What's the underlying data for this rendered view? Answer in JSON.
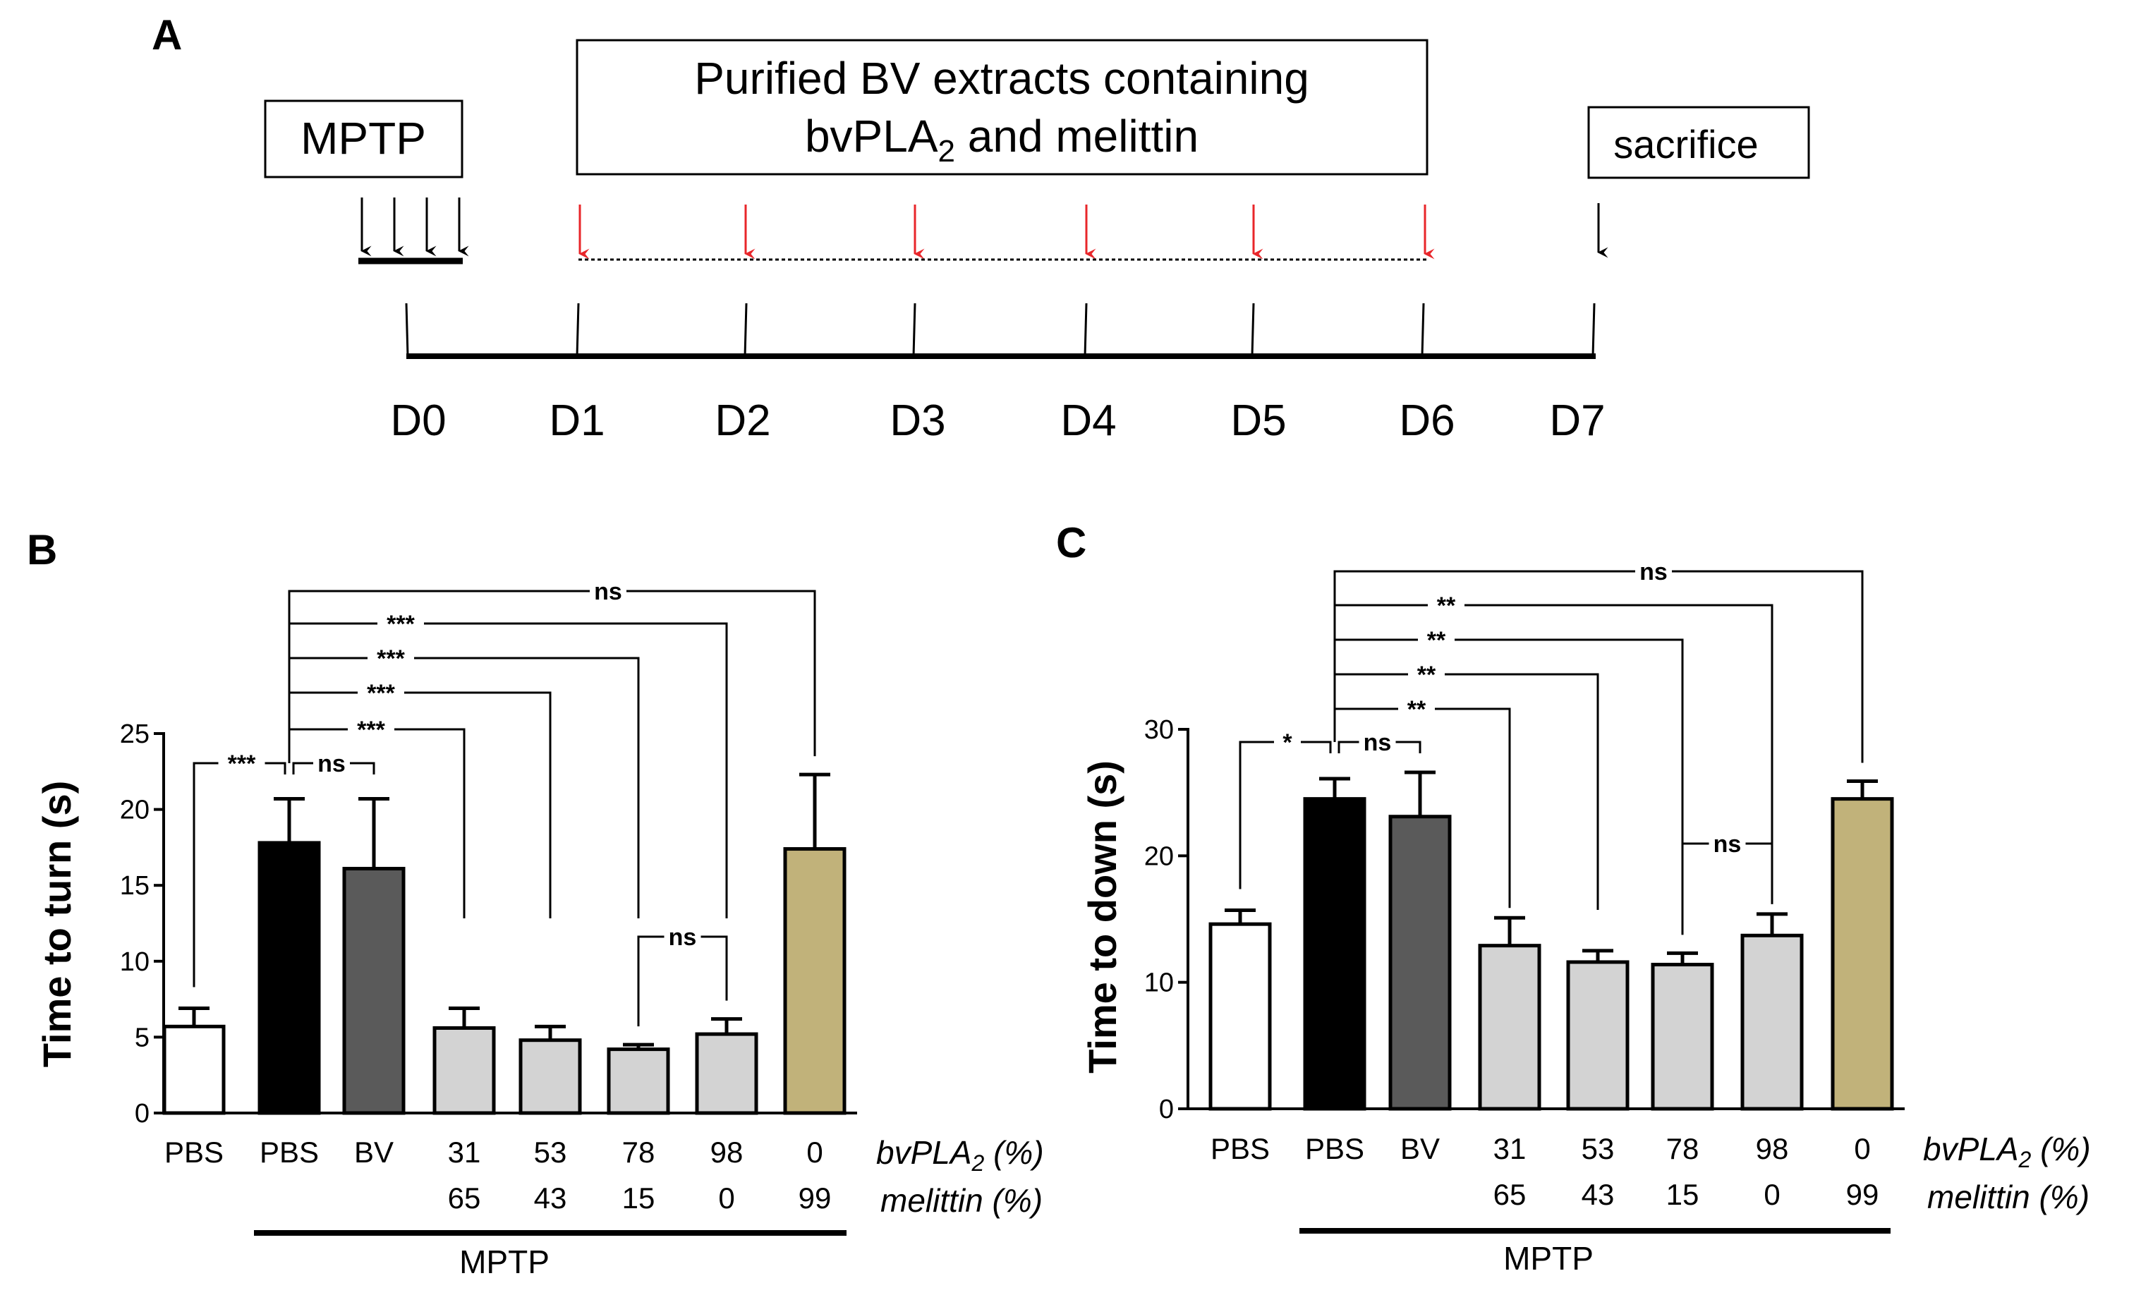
{
  "panels": {
    "a": "A",
    "b": "B",
    "c": "C"
  },
  "timeline": {
    "mptp_label": "MPTP",
    "treatment_line1": "Purified BV extracts containing",
    "treatment_line2_prefix": "bvPLA",
    "treatment_line2_sub": "2",
    "treatment_line2_suffix": " and melittin",
    "sacrifice_label": "sacrifice",
    "days": [
      "D0",
      "D1",
      "D2",
      "D3",
      "D4",
      "D5",
      "D6",
      "D7"
    ],
    "arrow_color_treatment": "#e8262a",
    "arrow_color_default": "#000000"
  },
  "row_labels": {
    "bvpla2_prefix": "bvPLA",
    "bvpla2_sub": "2",
    "bvpla2_suffix": " (%)",
    "melittin": "melittin (%)",
    "mptp": "MPTP"
  },
  "colors": {
    "pbs_control": "#ffffff",
    "mptp_pbs": "#000000",
    "bv": "#5a5a5a",
    "fraction": "#d3d3d3",
    "melittin_only": "#c1b27a"
  },
  "chart_data": [
    {
      "type": "bar",
      "panel": "B",
      "ylabel": "Time to turn (s)",
      "ylim": [
        0,
        25
      ],
      "yticks": [
        "0",
        "5",
        "10",
        "15",
        "20",
        "25"
      ],
      "categories": [
        "PBS",
        "PBS",
        "BV",
        "31",
        "53",
        "78",
        "98",
        "0"
      ],
      "melittin_row": [
        "",
        "",
        "",
        "65",
        "43",
        "15",
        "0",
        "99"
      ],
      "values": [
        5.7,
        17.8,
        16.1,
        5.6,
        4.8,
        4.2,
        5.2,
        17.4
      ],
      "errors": [
        1.2,
        2.9,
        4.6,
        1.3,
        0.9,
        0.3,
        1.0,
        4.9
      ],
      "colors": [
        "#ffffff",
        "#000000",
        "#5a5a5a",
        "#d3d3d3",
        "#d3d3d3",
        "#d3d3d3",
        "#d3d3d3",
        "#c1b27a"
      ],
      "significance": [
        {
          "label": "***",
          "from": 0,
          "to": 1
        },
        {
          "label": "ns",
          "from": 1,
          "to": 2
        },
        {
          "label": "***",
          "from": 1,
          "to": 3
        },
        {
          "label": "***",
          "from": 1,
          "to": 4
        },
        {
          "label": "***",
          "from": 1,
          "to": 5
        },
        {
          "label": "***",
          "from": 1,
          "to": 6
        },
        {
          "label": "ns",
          "from": 1,
          "to": 7
        },
        {
          "label": "ns",
          "from": 5,
          "to": 6
        }
      ]
    },
    {
      "type": "bar",
      "panel": "C",
      "ylabel": "Time to down (s)",
      "ylim": [
        0,
        30
      ],
      "yticks": [
        "0",
        "10",
        "20",
        "30"
      ],
      "categories": [
        "PBS",
        "PBS",
        "BV",
        "31",
        "53",
        "78",
        "98",
        "0"
      ],
      "melittin_row": [
        "",
        "",
        "",
        "65",
        "43",
        "15",
        "0",
        "99"
      ],
      "values": [
        14.6,
        24.5,
        23.1,
        12.9,
        11.6,
        11.4,
        13.7,
        24.5
      ],
      "errors": [
        1.1,
        1.6,
        3.5,
        2.2,
        0.9,
        0.9,
        1.7,
        1.4
      ],
      "colors": [
        "#ffffff",
        "#000000",
        "#5a5a5a",
        "#d3d3d3",
        "#d3d3d3",
        "#d3d3d3",
        "#d3d3d3",
        "#c1b27a"
      ],
      "significance": [
        {
          "label": "*",
          "from": 0,
          "to": 1
        },
        {
          "label": "ns",
          "from": 1,
          "to": 2
        },
        {
          "label": "**",
          "from": 1,
          "to": 3
        },
        {
          "label": "**",
          "from": 1,
          "to": 4
        },
        {
          "label": "**",
          "from": 1,
          "to": 5
        },
        {
          "label": "**",
          "from": 1,
          "to": 6
        },
        {
          "label": "ns",
          "from": 1,
          "to": 7
        },
        {
          "label": "ns",
          "from": 5,
          "to": 6
        }
      ]
    }
  ]
}
